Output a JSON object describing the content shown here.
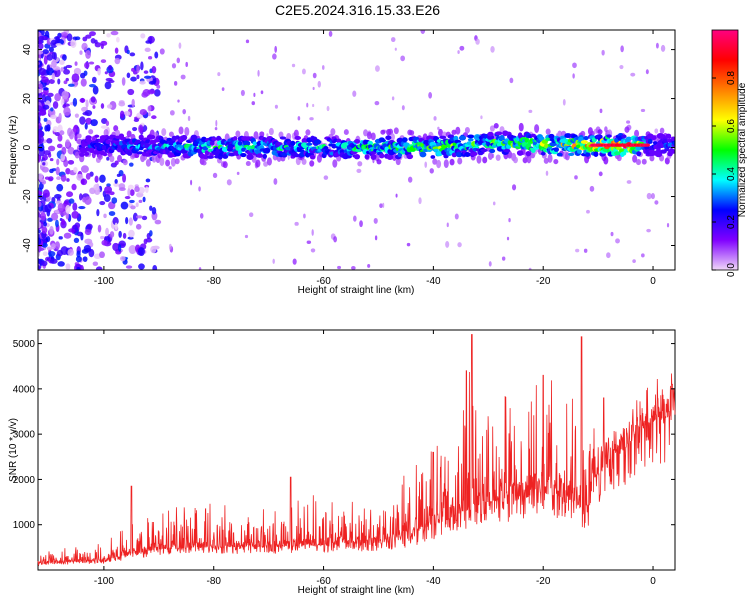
{
  "title": "C2E5.2024.316.15.33.E26",
  "chart_data": [
    {
      "type": "heatmap",
      "xlabel": "Height of straight line (km)",
      "ylabel": "Frequency (Hz)",
      "xlim": [
        -112,
        4
      ],
      "ylim": [
        -50,
        48
      ],
      "xticks": [
        -100,
        -80,
        -60,
        -40,
        -20,
        0
      ],
      "yticks": [
        -40,
        -20,
        0,
        20,
        40
      ],
      "colorbar": {
        "label": "Normalized spectral amplitude",
        "range": [
          0,
          1
        ],
        "ticks": [
          "0.0",
          "0.2",
          "0.4",
          "0.6",
          "0.8"
        ],
        "colors": [
          "#f0d8f8",
          "#8000ff",
          "#0000ff",
          "#00ffff",
          "#00ff00",
          "#ffff00",
          "#ff8000",
          "#ff0000",
          "#ff0080"
        ]
      },
      "ridge": {
        "description_values": "frequency centre of energy band vs height",
        "points": [
          [
            -112,
            0
          ],
          [
            -100,
            1
          ],
          [
            -80,
            0
          ],
          [
            -60,
            0
          ],
          [
            -40,
            0
          ],
          [
            -28,
            2
          ],
          [
            -20,
            1
          ],
          [
            -10,
            1
          ],
          [
            0,
            1
          ],
          [
            4,
            1
          ]
        ],
        "half_width_hz": 4,
        "amplitude": [
          [
            -112,
            0.15
          ],
          [
            -100,
            0.3
          ],
          [
            -80,
            0.5
          ],
          [
            -60,
            0.45
          ],
          [
            -40,
            0.6
          ],
          [
            -30,
            0.55
          ],
          [
            -20,
            0.65
          ],
          [
            -10,
            0.8
          ],
          [
            -5,
            0.95
          ],
          [
            0,
            0.3
          ],
          [
            4,
            0.3
          ]
        ]
      },
      "grid": false
    },
    {
      "type": "line",
      "xlabel": "Height of straight line (km)",
      "ylabel": "SNR (10 * v/v)",
      "xlim": [
        -112,
        4
      ],
      "ylim": [
        0,
        5300
      ],
      "xticks": [
        -100,
        -80,
        -60,
        -40,
        -20,
        0
      ],
      "yticks": [
        1000,
        2000,
        3000,
        4000,
        5000
      ],
      "color": "#ee2222",
      "envelope": {
        "x": [
          -112,
          -100,
          -95,
          -90,
          -80,
          -70,
          -60,
          -50,
          -44,
          -41,
          -36,
          -34,
          -33,
          -30,
          -26,
          -20,
          -14,
          -12,
          -11,
          -8,
          -5,
          -2,
          0,
          4
        ],
        "base": [
          150,
          200,
          350,
          450,
          500,
          500,
          550,
          600,
          700,
          900,
          1200,
          1300,
          1400,
          1500,
          1500,
          1700,
          1500,
          1200,
          2000,
          2300,
          2700,
          3100,
          3300,
          3400
        ],
        "upper": [
          500,
          600,
          1200,
          1400,
          1500,
          1600,
          1700,
          1800,
          2200,
          2600,
          3500,
          5200,
          4300,
          3600,
          4000,
          4300,
          4200,
          5100,
          3300,
          3600,
          3300,
          3800,
          3700,
          4200
        ]
      },
      "peaks": [
        {
          "x": -95,
          "y": 1850
        },
        {
          "x": -66,
          "y": 2050
        },
        {
          "x": -40,
          "y": 2600
        },
        {
          "x": -34,
          "y": 4400
        },
        {
          "x": -33,
          "y": 5200
        },
        {
          "x": -20,
          "y": 4300
        },
        {
          "x": -13,
          "y": 5150
        },
        {
          "x": -9,
          "y": 3800
        },
        {
          "x": 3.5,
          "y": 4100
        }
      ],
      "grid": false
    }
  ]
}
